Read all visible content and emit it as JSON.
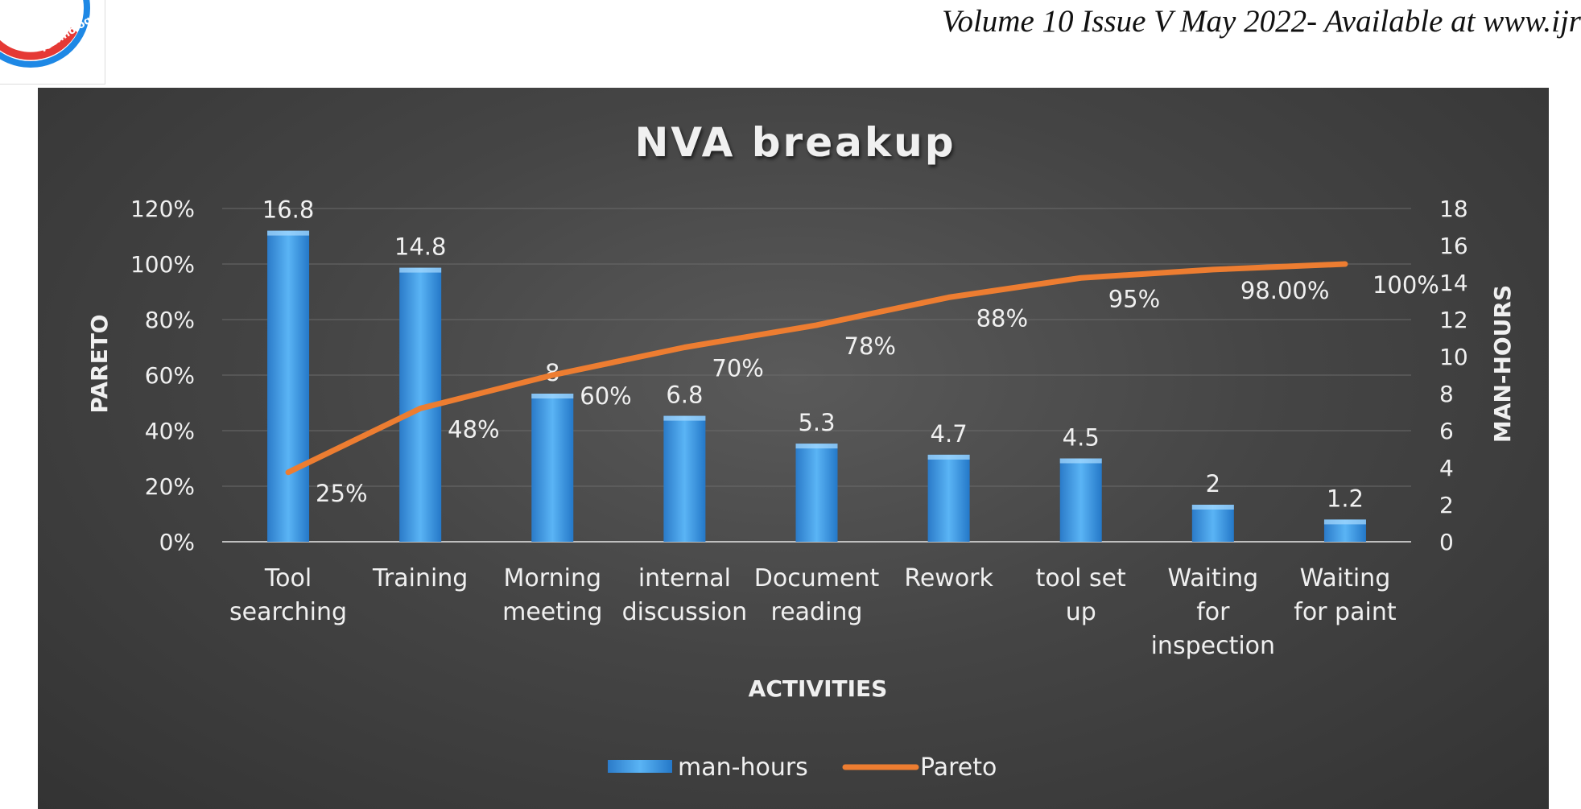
{
  "header": {
    "journal_line": "Volume 10 Issue V May 2022- Available at www.ijr",
    "logo_text": "Technology"
  },
  "colors": {
    "background": "#3e3e3e",
    "bar": "#2f8fe0",
    "bar_light": "#7cc4f8",
    "line": "#ed7d31",
    "text": "#f0f0f0",
    "logo_red": "#e53935",
    "logo_blue": "#1e88e5"
  },
  "chart_data": {
    "type": "bar",
    "title": "NVA breakup",
    "xlabel": "ACTIVITIES",
    "ylabel_left": "PARETO",
    "ylabel_right": "MAN-HOURS",
    "categories": [
      [
        "Tool",
        "searching"
      ],
      [
        "Training"
      ],
      [
        "Morning",
        "meeting"
      ],
      [
        "internal",
        "discussion"
      ],
      [
        "Document",
        "reading"
      ],
      [
        "Rework"
      ],
      [
        "tool set",
        "up"
      ],
      [
        "Waiting",
        "for",
        "inspection"
      ],
      [
        "Waiting",
        "for paint"
      ]
    ],
    "series": [
      {
        "name": "man-hours",
        "type": "bar",
        "axis": "right",
        "values": [
          16.8,
          14.8,
          8,
          6.8,
          5.3,
          4.7,
          4.5,
          2,
          1.2
        ],
        "labels": [
          "16.8",
          "14.8",
          "8",
          "6.8",
          "5.3",
          "4.7",
          "4.5",
          "2",
          "1.2"
        ]
      },
      {
        "name": "Pareto",
        "type": "line",
        "axis": "left",
        "values": [
          0.25,
          0.48,
          0.6,
          0.7,
          0.78,
          0.88,
          0.95,
          0.98,
          1.0
        ],
        "labels": [
          "25%",
          "48%",
          "60%",
          "70%",
          "78%",
          "88%",
          "95%",
          "98.00%",
          "100%"
        ]
      }
    ],
    "y_left": {
      "lim": [
        0,
        1.2
      ],
      "ticks": [
        "0%",
        "20%",
        "40%",
        "60%",
        "80%",
        "100%",
        "120%"
      ]
    },
    "y_right": {
      "lim": [
        0,
        18
      ],
      "ticks": [
        "0",
        "2",
        "4",
        "6",
        "8",
        "10",
        "12",
        "14",
        "16",
        "18"
      ]
    },
    "grid": true,
    "legend": "bottom"
  }
}
